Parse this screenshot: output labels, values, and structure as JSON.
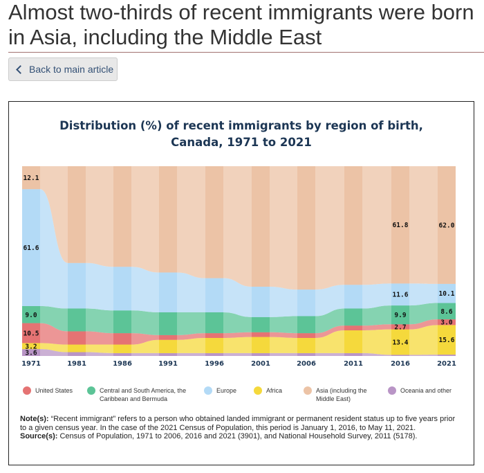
{
  "page": {
    "title": "Almost two-thirds of recent immigrants were born in Asia, including the Middle East",
    "back_button": "Back to main article"
  },
  "chart_data": {
    "type": "area",
    "title_line1": "Distribution (%) of recent immigrants by region of birth,",
    "title_line2": "Canada, 1971 to 2021",
    "x": [
      "1971",
      "1981",
      "1986",
      "1991",
      "1996",
      "2001",
      "2006",
      "2011",
      "2016",
      "2021"
    ],
    "stack_order_bottom_to_top": [
      "Oceania and other",
      "Africa",
      "United States",
      "Central and South America, the Caribbean and Bermuda",
      "Europe",
      "Asia (including the Middle East)"
    ],
    "series": [
      {
        "name": "United States",
        "color": "#e57373",
        "values": [
          10.5,
          7.0,
          6.0,
          2.5,
          2.5,
          2.5,
          2.5,
          2.5,
          2.7,
          3.0
        ]
      },
      {
        "name": "Central and South America, the Caribbean and Bermuda",
        "color": "#5cc497",
        "values": [
          9.0,
          12.0,
          12.0,
          12.0,
          11.0,
          8.0,
          9.0,
          9.0,
          9.9,
          8.6
        ]
      },
      {
        "name": "Europe",
        "color": "#b3daf6",
        "values": [
          61.6,
          24.0,
          23.0,
          21.0,
          18.0,
          16.0,
          14.0,
          12.5,
          11.6,
          10.1
        ]
      },
      {
        "name": "Africa",
        "color": "#f5d93c",
        "values": [
          3.2,
          4.0,
          4.5,
          7.0,
          8.0,
          8.5,
          8.0,
          12.0,
          13.4,
          15.6
        ]
      },
      {
        "name": "Asia (including the Middle East)",
        "color": "#ecc3a6",
        "values": [
          12.1,
          51.0,
          53.0,
          56.0,
          59.0,
          63.5,
          65.0,
          62.5,
          61.8,
          62.0
        ]
      },
      {
        "name": "Oceania and other",
        "color": "#b995c6",
        "values": [
          3.6,
          2.0,
          1.5,
          1.5,
          1.5,
          1.5,
          1.5,
          1.5,
          0.6,
          0.7
        ]
      }
    ],
    "data_labels": [
      {
        "series": "Europe",
        "x": "1971",
        "text": "61.6"
      },
      {
        "series": "Asia (including the Middle East)",
        "x": "1971",
        "text": "12.1"
      },
      {
        "series": "United States",
        "x": "1971",
        "text": "10.5"
      },
      {
        "series": "Central and South America, the Caribbean and Bermuda",
        "x": "1971",
        "text": "9.0"
      },
      {
        "series": "Oceania and other",
        "x": "1971",
        "text": "3.6"
      },
      {
        "series": "Africa",
        "x": "1971",
        "text": "3.2"
      },
      {
        "series": "Asia (including the Middle East)",
        "x": "2016",
        "text": "61.8"
      },
      {
        "series": "Africa",
        "x": "2016",
        "text": "13.4"
      },
      {
        "series": "Europe",
        "x": "2016",
        "text": "11.6"
      },
      {
        "series": "Central and South America, the Caribbean and Bermuda",
        "x": "2016",
        "text": "9.9"
      },
      {
        "series": "United States",
        "x": "2016",
        "text": "2.7"
      },
      {
        "series": "Asia (including the Middle East)",
        "x": "2021",
        "text": "62.0"
      },
      {
        "series": "Africa",
        "x": "2021",
        "text": "15.6"
      },
      {
        "series": "Europe",
        "x": "2021",
        "text": "10.1"
      },
      {
        "series": "Central and South America, the Caribbean and Bermuda",
        "x": "2021",
        "text": "8.6"
      },
      {
        "series": "United States",
        "x": "2021",
        "text": "3.0"
      }
    ],
    "ylim": [
      0,
      100
    ],
    "legend": [
      "United States",
      "Central and South America, the Caribbean and Bermuda",
      "Europe",
      "Africa",
      "Asia (including the Middle East)",
      "Oceania and other"
    ],
    "legend_position": "bottom"
  },
  "legend": {
    "us": "United States",
    "csa_line1": "Central and South America, the",
    "csa_line2": "Caribbean and Bermuda",
    "europe": "Europe",
    "africa": "Africa",
    "asia_line1": "Asia (including the",
    "asia_line2": "Middle East)",
    "oceania": "Oceania and other"
  },
  "notes": {
    "note_label": "Note(s):",
    "note_text": " “Recent immigrant” refers to a person who obtained landed immigrant or permanent resident status up to five years prior to a given census year. In the case of the 2021 Census of Population, this period is January 1, 2016, to May 11, 2021.",
    "source_label": "Source(s):",
    "source_text": " Census of Population, 1971 to 2006, 2016 and 2021 (3901), and National Household Survey, 2011 (5178)."
  }
}
